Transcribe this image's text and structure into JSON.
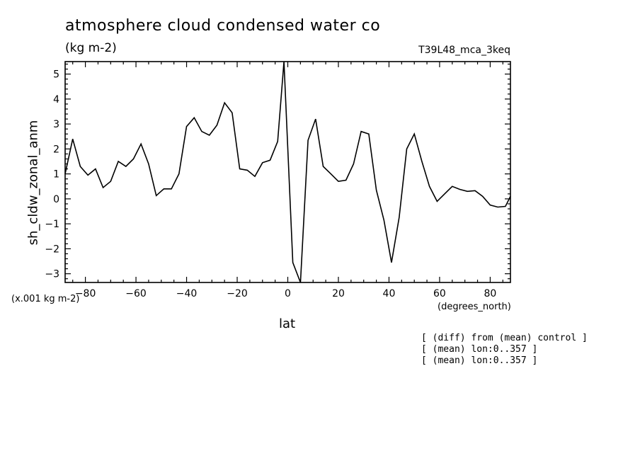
{
  "header": {
    "title": "atmosphere cloud condensed water co",
    "units": "(kg m-2)",
    "run": "T39L48_mca_3keq"
  },
  "annotations": {
    "scale": "(x.001 kg m-2)",
    "x_units": "(degrees_north)",
    "notes": [
      "[ (diff) from (mean) control ]",
      "[ (mean) lon:0..357 ]",
      "[ (mean) lon:0..357 ]"
    ]
  },
  "chart_data": {
    "type": "line",
    "title": "atmosphere cloud condensed water co",
    "xlabel": "lat",
    "ylabel": "sh_cldw_zonal_anm",
    "xlim": [
      -88,
      88
    ],
    "ylim": [
      -3.35,
      5.5
    ],
    "x_ticks": [
      -80,
      -60,
      -40,
      -20,
      0,
      20,
      40,
      60,
      80
    ],
    "y_ticks": [
      -3,
      -2,
      -1,
      0,
      1,
      2,
      3,
      4,
      5
    ],
    "grid": false,
    "color": "#000000",
    "series": [
      {
        "x": [
          -88,
          -85,
          -82,
          -79,
          -76,
          -73,
          -70,
          -67,
          -64,
          -61,
          -58,
          -55,
          -52,
          -49,
          -46,
          -43,
          -40,
          -37,
          -34,
          -31,
          -28,
          -25,
          -22,
          -19,
          -16,
          -13,
          -10,
          -7,
          -4,
          -1.5,
          2,
          5,
          8,
          11,
          14,
          17,
          20,
          23,
          26,
          29,
          32,
          35,
          38,
          41,
          44,
          47,
          50,
          53,
          56,
          59,
          62,
          65,
          68,
          71,
          74,
          77,
          80,
          83,
          86,
          88
        ],
        "y": [
          1.0,
          2.4,
          1.3,
          0.95,
          1.2,
          0.45,
          0.7,
          1.5,
          1.3,
          1.6,
          2.2,
          1.4,
          0.13,
          0.4,
          0.4,
          1.0,
          2.9,
          3.25,
          2.7,
          2.55,
          2.95,
          3.85,
          3.45,
          1.2,
          1.15,
          0.9,
          1.45,
          1.55,
          2.3,
          5.5,
          -2.55,
          -3.35,
          2.35,
          3.2,
          1.3,
          1.0,
          0.7,
          0.75,
          1.4,
          2.7,
          2.6,
          0.35,
          -0.85,
          -2.55,
          -0.75,
          2.0,
          2.6,
          1.5,
          0.5,
          -0.1,
          0.2,
          0.5,
          0.38,
          0.3,
          0.33,
          0.1,
          -0.25,
          -0.33,
          -0.3,
          0.1
        ]
      }
    ]
  }
}
